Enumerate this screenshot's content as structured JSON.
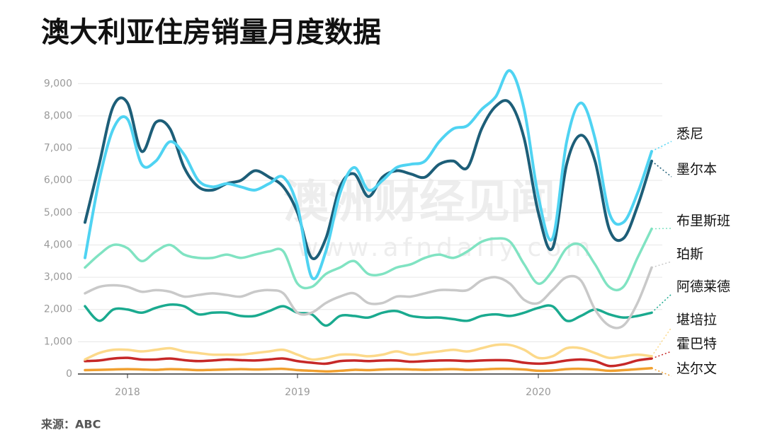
{
  "chart_data": {
    "type": "line",
    "title": "澳大利亚住房销量月度数据",
    "source": "来源：ABC",
    "watermark": [
      "澳洲财经见闻",
      "www.afndaily.com"
    ],
    "categories": [
      null,
      null,
      null,
      "2018",
      null,
      null,
      null,
      null,
      null,
      null,
      null,
      null,
      null,
      null,
      null,
      "2019",
      null,
      null,
      null,
      null,
      null,
      null,
      null,
      null,
      null,
      null,
      null,
      null,
      null,
      null,
      null,
      null,
      "2020",
      null,
      null,
      null,
      null,
      null,
      null,
      null,
      null
    ],
    "ylim": [
      0,
      9400
    ],
    "yticks": [
      0,
      {
        "value": 1000,
        "label": "1,000"
      },
      {
        "value": 2000,
        "label": "2,000"
      },
      {
        "value": 3000,
        "label": "3,000"
      },
      {
        "value": 4000,
        "label": "4,000"
      },
      {
        "value": 5000,
        "label": "5,000"
      },
      {
        "value": 6000,
        "label": "6,000"
      },
      {
        "value": 7000,
        "label": "7,000"
      },
      {
        "value": 8000,
        "label": "8,000"
      },
      {
        "value": 9000,
        "label": "9,000"
      }
    ],
    "grid": true,
    "series": [
      {
        "name": "悉尼",
        "color": "#4fd3f2",
        "values": [
          3600,
          6000,
          7600,
          7900,
          6500,
          6600,
          7200,
          6800,
          6000,
          5800,
          5900,
          5800,
          5700,
          5900,
          6100,
          5200,
          3000,
          3800,
          5600,
          6400,
          5700,
          6000,
          6400,
          6500,
          6600,
          7200,
          7600,
          7700,
          8200,
          8600,
          9400,
          8200,
          5500,
          4200,
          7200,
          8400,
          7300,
          5000,
          4700,
          5600,
          6900
        ]
      },
      {
        "name": "墨尔本",
        "color": "#1d5e78",
        "values": [
          4700,
          6500,
          8300,
          8400,
          6900,
          7800,
          7600,
          6400,
          5800,
          5700,
          5900,
          6000,
          6300,
          6100,
          5800,
          5000,
          3600,
          4200,
          5800,
          6200,
          5500,
          6100,
          6300,
          6200,
          6100,
          6500,
          6600,
          6400,
          7600,
          8300,
          8400,
          7300,
          5000,
          3900,
          6500,
          7400,
          6600,
          4500,
          4200,
          5200,
          6600
        ]
      },
      {
        "name": "布里斯班",
        "color": "#80e3c2",
        "values": [
          3300,
          3700,
          4000,
          3900,
          3500,
          3800,
          4000,
          3700,
          3600,
          3600,
          3700,
          3600,
          3700,
          3800,
          3800,
          2800,
          2700,
          3100,
          3300,
          3500,
          3100,
          3100,
          3300,
          3400,
          3600,
          3700,
          3600,
          3800,
          4100,
          4200,
          4100,
          3400,
          2800,
          3200,
          3900,
          4000,
          3400,
          2700,
          2700,
          3600,
          4500
        ]
      },
      {
        "name": "珀斯",
        "color": "#c9c9c9",
        "values": [
          2500,
          2700,
          2750,
          2700,
          2550,
          2600,
          2550,
          2400,
          2450,
          2500,
          2450,
          2400,
          2550,
          2600,
          2500,
          1900,
          1900,
          2200,
          2400,
          2500,
          2200,
          2200,
          2400,
          2400,
          2500,
          2600,
          2600,
          2600,
          2900,
          3000,
          2800,
          2300,
          2200,
          2600,
          3000,
          2900,
          2000,
          1500,
          1500,
          2200,
          3300
        ]
      },
      {
        "name": "阿德莱德",
        "color": "#1aaa8f",
        "values": [
          2100,
          1650,
          2000,
          2000,
          1900,
          2050,
          2150,
          2100,
          1850,
          1900,
          1900,
          1800,
          1800,
          1950,
          2100,
          1900,
          1850,
          1500,
          1800,
          1800,
          1750,
          1900,
          1950,
          1800,
          1750,
          1750,
          1700,
          1650,
          1800,
          1850,
          1800,
          1900,
          2050,
          2100,
          1650,
          1800,
          2000,
          1850,
          1750,
          1800,
          1900
        ]
      },
      {
        "name": "堪培拉",
        "color": "#fcd98a",
        "values": [
          450,
          650,
          750,
          750,
          700,
          750,
          800,
          700,
          650,
          600,
          600,
          600,
          650,
          700,
          750,
          600,
          450,
          500,
          600,
          600,
          550,
          600,
          700,
          600,
          650,
          700,
          750,
          700,
          800,
          900,
          900,
          750,
          500,
          550,
          800,
          800,
          650,
          500,
          550,
          600,
          550
        ]
      },
      {
        "name": "霍巴特",
        "color": "#c62828",
        "values": [
          400,
          420,
          480,
          500,
          450,
          450,
          480,
          430,
          400,
          420,
          450,
          430,
          420,
          450,
          480,
          400,
          350,
          320,
          400,
          420,
          400,
          420,
          420,
          380,
          400,
          420,
          420,
          400,
          420,
          430,
          420,
          350,
          320,
          350,
          420,
          450,
          400,
          250,
          300,
          420,
          480
        ]
      },
      {
        "name": "达尔文",
        "color": "#f0a030",
        "values": [
          120,
          130,
          140,
          150,
          140,
          130,
          150,
          140,
          120,
          130,
          140,
          150,
          140,
          150,
          160,
          120,
          100,
          80,
          100,
          130,
          120,
          140,
          150,
          140,
          130,
          140,
          150,
          130,
          140,
          160,
          160,
          140,
          100,
          110,
          150,
          160,
          140,
          100,
          120,
          150,
          180
        ]
      }
    ]
  }
}
